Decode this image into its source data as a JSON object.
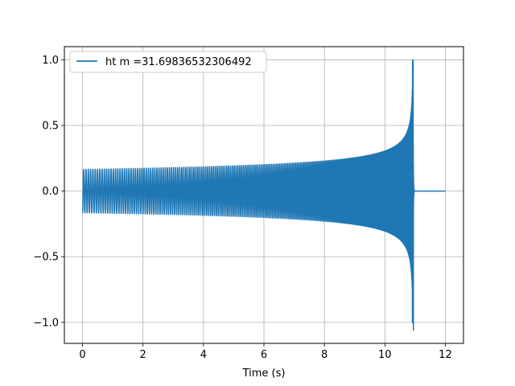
{
  "chart_data": {
    "type": "line",
    "xlabel": "Time (s)",
    "ylabel": "",
    "title": "",
    "xlim": [
      -0.6,
      12.6
    ],
    "ylim": [
      -1.16,
      1.1
    ],
    "xticks": [
      0,
      2,
      4,
      6,
      8,
      10,
      12
    ],
    "yticks": [
      -1.0,
      -0.5,
      0.0,
      0.5,
      1.0
    ],
    "xtick_labels": [
      "0",
      "2",
      "4",
      "6",
      "8",
      "10",
      "12"
    ],
    "ytick_labels": [
      "−1.0",
      "−0.5",
      "0.0",
      "0.5",
      "1.0"
    ],
    "grid": true,
    "legend_position": "top-left",
    "series": [
      {
        "name": "ht m =31.69836532306492",
        "color": "#1f77b4",
        "description_points": {
          "t_start": 0.0,
          "t_merger": 10.93,
          "t_end": 12.0,
          "envelope_start": 0.165,
          "peak_max": 1.0,
          "peak_min": -1.06
        }
      }
    ]
  }
}
